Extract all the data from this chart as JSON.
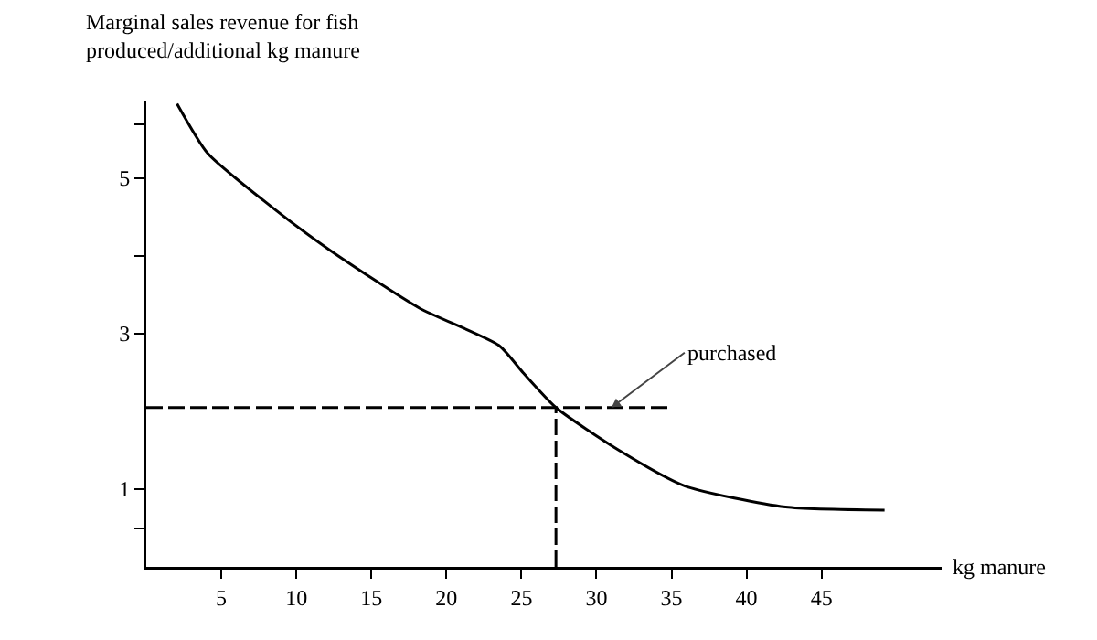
{
  "chart_data": {
    "type": "line",
    "ylabel": "Marginal sales revenue for fish produced/additional kg manure",
    "xlabel": "kg manure",
    "xlim": [
      0,
      53
    ],
    "xticks": [
      5,
      10,
      15,
      20,
      25,
      30,
      35,
      40,
      45
    ],
    "ylim": [
      0,
      6
    ],
    "yticks": [
      {
        "value": 0.5,
        "label": null
      },
      1,
      3,
      {
        "value": 4,
        "label": null
      },
      5,
      {
        "value": 5.7,
        "label": null
      }
    ],
    "grid": false,
    "marker": "none",
    "series": [
      {
        "color": "#000000",
        "line_style": "solid",
        "x": [
          2.05,
          4.1,
          8.3,
          12.2,
          18.2,
          23.5,
          25.1,
          27.3,
          31.5,
          35.9,
          42.6,
          49.2
        ],
        "values": [
          5.96,
          5.32,
          4.64,
          4.08,
          3.33,
          2.85,
          2.5,
          2.05,
          1.5,
          1.04,
          0.77,
          0.73
        ]
      },
      {
        "color": "#000000",
        "line_style": "dashed",
        "x": [
          0,
          35
        ],
        "values": [
          2.05,
          2.05
        ]
      },
      {
        "color": "#000000",
        "line_style": "dashed",
        "x": [
          27.3,
          27.3
        ],
        "values": [
          0,
          2.05
        ]
      }
    ],
    "annotations": [
      {
        "text": "purchased",
        "x": 31,
        "y": 2.05
      }
    ]
  }
}
